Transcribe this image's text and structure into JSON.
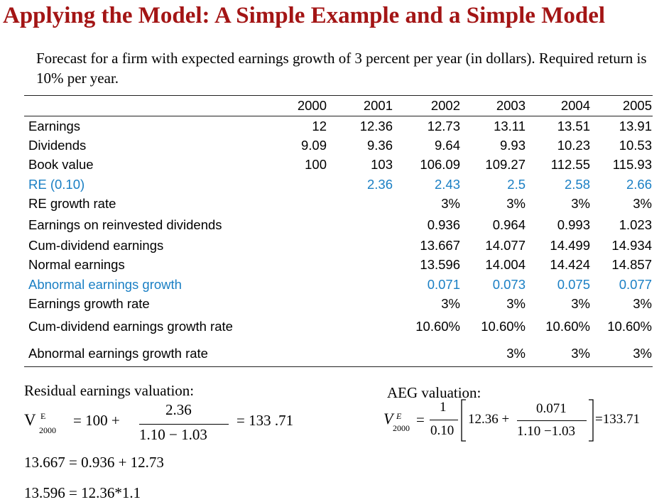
{
  "title": "Applying the Model: A Simple Example and a Simple Model",
  "intro": "Forecast for a firm with expected earnings growth of 3 percent per year (in dollars).  Required return is 10% per year.",
  "table": {
    "years": [
      "2000",
      "2001",
      "2002",
      "2003",
      "2004",
      "2005"
    ],
    "rows": [
      {
        "label": "Earnings",
        "highlight": false,
        "values": [
          "12",
          "12.36",
          "12.73",
          "13.11",
          "13.51",
          "13.91"
        ]
      },
      {
        "label": "Dividends",
        "highlight": false,
        "values": [
          "9.09",
          "9.36",
          "9.64",
          "9.93",
          "10.23",
          "10.53"
        ]
      },
      {
        "label": "Book value",
        "highlight": false,
        "values": [
          "100",
          "103",
          "106.09",
          "109.27",
          "112.55",
          "115.93"
        ]
      },
      {
        "label": "RE (0.10)",
        "highlight": true,
        "values": [
          "",
          "2.36",
          "2.43",
          "2.5",
          "2.58",
          "2.66"
        ]
      },
      {
        "label": "RE growth rate",
        "highlight": false,
        "values": [
          "",
          "",
          "3%",
          "3%",
          "3%",
          "3%"
        ]
      },
      {
        "label": "Earnings on reinvested dividends",
        "highlight": false,
        "values": [
          "",
          "",
          "0.936",
          "0.964",
          "0.993",
          "1.023"
        ]
      },
      {
        "label": "Cum-dividend earnings",
        "highlight": false,
        "values": [
          "",
          "",
          "13.667",
          "14.077",
          "14.499",
          "14.934"
        ]
      },
      {
        "label": "Normal earnings",
        "highlight": false,
        "values": [
          "",
          "",
          "13.596",
          "14.004",
          "14.424",
          "14.857"
        ]
      },
      {
        "label": "Abnormal earnings growth",
        "highlight": true,
        "values": [
          "",
          "",
          "0.071",
          "0.073",
          "0.075",
          "0.077"
        ]
      },
      {
        "label": "Earnings growth rate",
        "highlight": false,
        "values": [
          "",
          "",
          "3%",
          "3%",
          "3%",
          "3%"
        ]
      },
      {
        "label": "Cum-dividend earnings growth rate",
        "highlight": false,
        "values": [
          "",
          "",
          "10.60%",
          "10.60%",
          "10.60%",
          "10.60%"
        ]
      },
      {
        "label": "Abnormal earnings growth rate",
        "highlight": false,
        "values": [
          "",
          "",
          "",
          "3%",
          "3%",
          "3%"
        ]
      }
    ]
  },
  "re_valuation": {
    "heading": "Residual earnings valuation:",
    "v": "V",
    "sup": "E",
    "sub": "2000",
    "lhs": "= 100  +",
    "numerator": "2.36",
    "denominator": "1.10  − 1.03",
    "result": "= 133 .71"
  },
  "aeg_valuation": {
    "heading": "AEG valuation:",
    "v": "V",
    "sup": "E",
    "sub": "2000",
    "eq": "=",
    "frac_num": "1",
    "frac_den": "0.10",
    "inner_lead": "12.36 +",
    "inner_num": "0.071",
    "inner_den": "1.10 −1.03",
    "result": "=133.71"
  },
  "notes": [
    "13.667 = 0.936 + 12.73",
    "13.596 = 12.36*1.1"
  ],
  "colors": {
    "title": "#a31515",
    "highlight": "#1a7fc4"
  }
}
